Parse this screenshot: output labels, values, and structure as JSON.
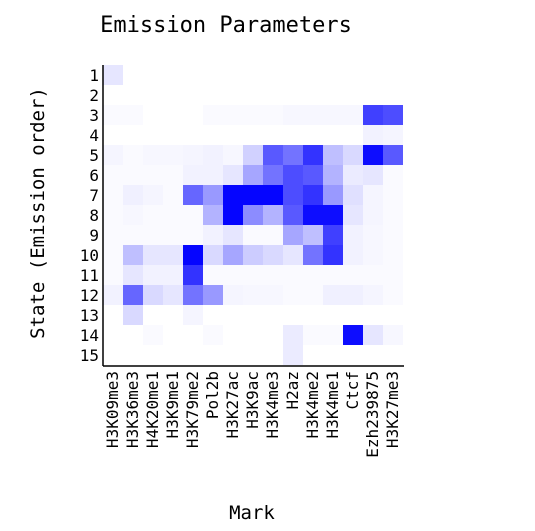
{
  "chart_data": {
    "type": "heatmap",
    "title": "Emission Parameters",
    "xlabel": "Mark",
    "ylabel": "State (Emission order)",
    "columns": [
      "H3K09me3",
      "H3K36me3",
      "H4K20me1",
      "H3K9me1",
      "H3K79me2",
      "Pol2b",
      "H3K27ac",
      "H3K9ac",
      "H3K4me3",
      "H2az",
      "H3K4me2",
      "H3K4me1",
      "Ctcf",
      "Ezh239875",
      "H3K27me3"
    ],
    "rows": [
      "1",
      "2",
      "3",
      "4",
      "5",
      "6",
      "7",
      "8",
      "9",
      "10",
      "11",
      "12",
      "13",
      "14",
      "15"
    ],
    "values": [
      [
        0.1,
        0,
        0,
        0,
        0,
        0,
        0,
        0,
        0,
        0,
        0,
        0,
        0,
        0,
        0
      ],
      [
        0,
        0,
        0,
        0,
        0,
        0,
        0,
        0,
        0,
        0,
        0,
        0,
        0,
        0,
        0
      ],
      [
        0.02,
        0.02,
        0,
        0,
        0,
        0.02,
        0.02,
        0.02,
        0.02,
        0.03,
        0.03,
        0.03,
        0.03,
        0.75,
        0.7
      ],
      [
        0,
        0,
        0,
        0,
        0,
        0,
        0,
        0,
        0,
        0,
        0,
        0,
        0,
        0.05,
        0.04
      ],
      [
        0.04,
        0.02,
        0.03,
        0.03,
        0.04,
        0.05,
        0.03,
        0.18,
        0.65,
        0.55,
        0.8,
        0.25,
        0.15,
        0.95,
        0.65
      ],
      [
        0.02,
        0.02,
        0.02,
        0.02,
        0.05,
        0.05,
        0.1,
        0.35,
        0.55,
        0.7,
        0.65,
        0.3,
        0.08,
        0.1,
        0.02
      ],
      [
        0.02,
        0.06,
        0.04,
        0.02,
        0.6,
        0.4,
        0.98,
        0.98,
        0.98,
        0.7,
        0.8,
        0.4,
        0.12,
        0.04,
        0.02
      ],
      [
        0.02,
        0.03,
        0.02,
        0.02,
        0.02,
        0.3,
        0.98,
        0.45,
        0.3,
        0.65,
        0.95,
        0.95,
        0.1,
        0.04,
        0.02
      ],
      [
        0.02,
        0.02,
        0.02,
        0.02,
        0.02,
        0.05,
        0.1,
        0.02,
        0.02,
        0.35,
        0.25,
        0.75,
        0.05,
        0.03,
        0.02
      ],
      [
        0.02,
        0.25,
        0.1,
        0.1,
        0.98,
        0.15,
        0.35,
        0.2,
        0.15,
        0.1,
        0.55,
        0.8,
        0.05,
        0.03,
        0.02
      ],
      [
        0.02,
        0.1,
        0.05,
        0.05,
        0.8,
        0.02,
        0.02,
        0.02,
        0.02,
        0.02,
        0.02,
        0.02,
        0.02,
        0.02,
        0.02
      ],
      [
        0.05,
        0.6,
        0.15,
        0.1,
        0.55,
        0.4,
        0.04,
        0.03,
        0.03,
        0.02,
        0.02,
        0.06,
        0.06,
        0.04,
        0.02
      ],
      [
        0,
        0.15,
        0,
        0,
        0.04,
        0,
        0,
        0,
        0,
        0,
        0,
        0,
        0,
        0,
        0
      ],
      [
        0,
        0,
        0.02,
        0,
        0,
        0.02,
        0,
        0,
        0,
        0.08,
        0.02,
        0.02,
        0.95,
        0.1,
        0.03
      ],
      [
        0,
        0,
        0,
        0,
        0,
        0,
        0,
        0,
        0,
        0.08,
        0,
        0,
        0,
        0,
        0
      ]
    ],
    "color_low": "#ffffff",
    "color_high": "#0000ff"
  }
}
